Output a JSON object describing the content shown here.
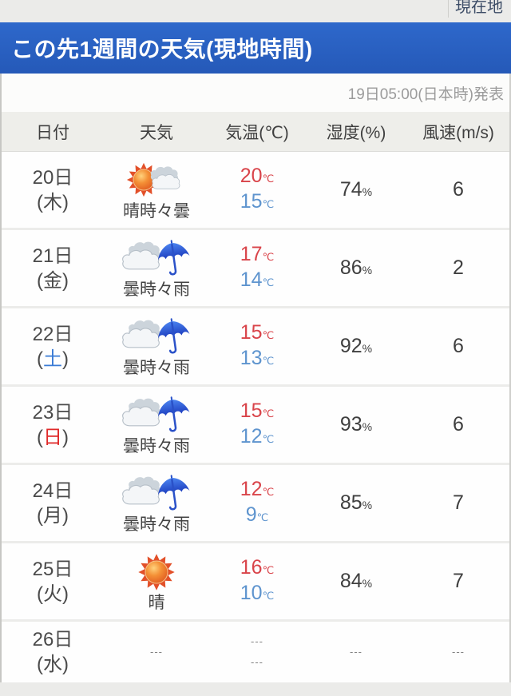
{
  "top_bar": {
    "location_label": "現在地"
  },
  "banner": {
    "title": "この先1週間の天気(現地時間)"
  },
  "published_label": "19日05:00(日本時)発表",
  "table": {
    "headers": [
      "日付",
      "天気",
      "気温(℃)",
      "湿度(%)",
      "風速(m/s)"
    ],
    "temp_unit": "℃",
    "humidity_unit": "%",
    "empty_value": "---",
    "rows": [
      {
        "day": "20日",
        "weekday": "木",
        "weekday_type": "normal",
        "weather": "晴時々曇",
        "icon": "sun-cloud-icon",
        "temp_high": "20",
        "temp_low": "15",
        "humidity": "74",
        "wind": "6"
      },
      {
        "day": "21日",
        "weekday": "金",
        "weekday_type": "normal",
        "weather": "曇時々雨",
        "icon": "cloud-umbrella-icon",
        "temp_high": "17",
        "temp_low": "14",
        "humidity": "86",
        "wind": "2"
      },
      {
        "day": "22日",
        "weekday": "土",
        "weekday_type": "saturday",
        "weather": "曇時々雨",
        "icon": "cloud-umbrella-icon",
        "temp_high": "15",
        "temp_low": "13",
        "humidity": "92",
        "wind": "6"
      },
      {
        "day": "23日",
        "weekday": "日",
        "weekday_type": "sunday",
        "weather": "曇時々雨",
        "icon": "cloud-umbrella-icon",
        "temp_high": "15",
        "temp_low": "12",
        "humidity": "93",
        "wind": "6"
      },
      {
        "day": "24日",
        "weekday": "月",
        "weekday_type": "normal",
        "weather": "曇時々雨",
        "icon": "cloud-umbrella-icon",
        "temp_high": "12",
        "temp_low": "9",
        "humidity": "85",
        "wind": "7"
      },
      {
        "day": "25日",
        "weekday": "火",
        "weekday_type": "normal",
        "weather": "晴",
        "icon": "sun-icon",
        "temp_high": "16",
        "temp_low": "10",
        "humidity": "84",
        "wind": "7"
      },
      {
        "day": "26日",
        "weekday": "水",
        "weekday_type": "normal",
        "weather": "---",
        "icon": "none",
        "temp_high": "---",
        "temp_low": "---",
        "humidity": "---",
        "wind": "---"
      }
    ]
  },
  "colors": {
    "banner_blue": "#2a62c4",
    "high_temp_red": "#d9444a",
    "low_temp_blue": "#5e94ce",
    "saturday_blue": "#3a7bd5",
    "sunday_red": "#e02929",
    "text_dark": "#4a4a4a",
    "muted_gray": "#9b9b9b"
  }
}
